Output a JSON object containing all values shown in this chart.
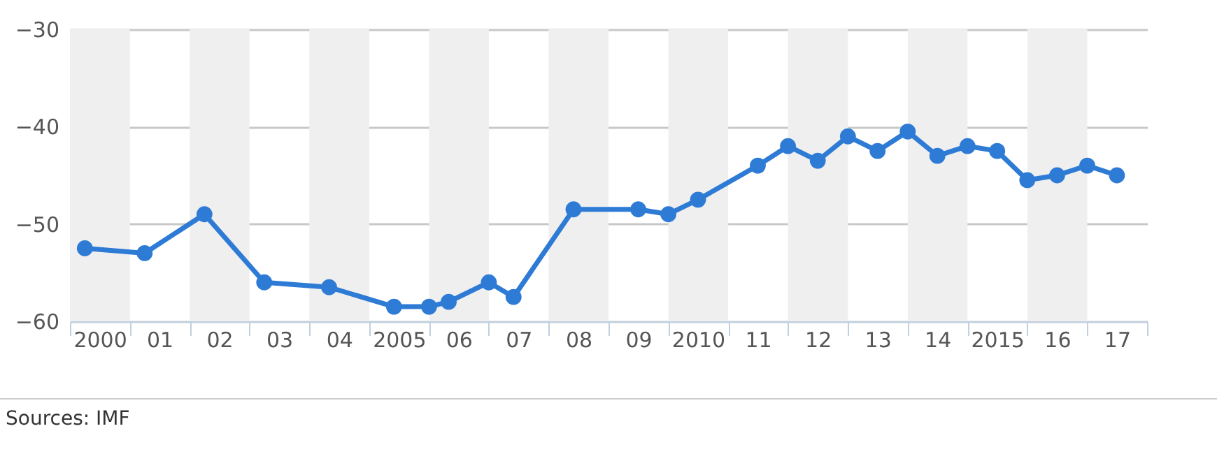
{
  "chart_data": {
    "type": "line",
    "x": [
      "2000-04",
      "2001-04",
      "2002-04",
      "2003-04",
      "2004-05",
      "2005-06",
      "2006-01",
      "2006-05",
      "2007-01",
      "2007-06",
      "2008-06",
      "2009-07",
      "2010-01",
      "2010-07",
      "2011-07",
      "2012-01",
      "2012-07",
      "2013-01",
      "2013-07",
      "2014-01",
      "2014-07",
      "2015-01",
      "2015-07",
      "2016-01",
      "2016-07",
      "2017-01",
      "2017-07"
    ],
    "series": [
      {
        "color": "#2e7bd6",
        "values": [
          -52.5,
          -53,
          -49,
          -56,
          -56.5,
          -58.5,
          -58.5,
          -58,
          -56,
          -57.5,
          -48.5,
          -48.5,
          -49,
          -47.5,
          -44,
          -42,
          -43.5,
          -41,
          -42.5,
          -40.5,
          -43,
          -42,
          -42.5,
          -45.5,
          -45,
          -44,
          -45
        ]
      }
    ],
    "xlim": [
      "2000-01-01",
      "2018-01-01"
    ],
    "xticks": [
      {
        "value": "2000-01-01",
        "label": null
      },
      {
        "value": "2000-07-01",
        "label": "2000"
      },
      {
        "value": "2001-01-01",
        "label": null
      },
      {
        "value": "2001-07-01",
        "label": "01"
      },
      {
        "value": "2002-01-01",
        "label": null
      },
      {
        "value": "2002-07-01",
        "label": "02"
      },
      {
        "value": "2003-01-01",
        "label": null
      },
      {
        "value": "2003-07-01",
        "label": "03"
      },
      {
        "value": "2004-01-01",
        "label": null
      },
      {
        "value": "2004-07-01",
        "label": "04"
      },
      {
        "value": "2005-01-01",
        "label": null
      },
      {
        "value": "2005-07-01",
        "label": "2005"
      },
      {
        "value": "2006-01-01",
        "label": null
      },
      {
        "value": "2006-07-01",
        "label": "06"
      },
      {
        "value": "2007-01-01",
        "label": null
      },
      {
        "value": "2007-07-01",
        "label": "07"
      },
      {
        "value": "2008-01-01",
        "label": null
      },
      {
        "value": "2008-07-01",
        "label": "08"
      },
      {
        "value": "2009-01-01",
        "label": null
      },
      {
        "value": "2009-07-01",
        "label": "09"
      },
      {
        "value": "2010-01-01",
        "label": null
      },
      {
        "value": "2010-07-01",
        "label": "2010"
      },
      {
        "value": "2011-01-01",
        "label": null
      },
      {
        "value": "2011-07-01",
        "label": "11"
      },
      {
        "value": "2012-01-01",
        "label": null
      },
      {
        "value": "2012-07-01",
        "label": "12"
      },
      {
        "value": "2013-01-01",
        "label": null
      },
      {
        "value": "2013-07-01",
        "label": "13"
      },
      {
        "value": "2014-01-01",
        "label": null
      },
      {
        "value": "2014-07-01",
        "label": "14"
      },
      {
        "value": "2015-01-01",
        "label": null
      },
      {
        "value": "2015-07-01",
        "label": "2015"
      },
      {
        "value": "2016-01-01",
        "label": null
      },
      {
        "value": "2016-07-01",
        "label": "16"
      },
      {
        "value": "2017-01-01",
        "label": null
      },
      {
        "value": "2017-07-01",
        "label": "17"
      },
      {
        "value": "2018-01-01",
        "label": null
      }
    ],
    "ylim": [
      -60,
      -30
    ],
    "yticks": [
      {
        "value": -60,
        "label": "−60"
      },
      {
        "value": -50,
        "label": "−50"
      },
      {
        "value": -40,
        "label": "−40"
      },
      {
        "value": -30,
        "label": "−30"
      }
    ],
    "grid": "y",
    "marker": "circle",
    "line_style": "solid",
    "bands": [
      {
        "axis": "x",
        "from": "2000-01-01",
        "to": "2001-01-01",
        "color": "#efefef"
      },
      {
        "axis": "x",
        "from": "2002-01-01",
        "to": "2003-01-01",
        "color": "#efefef"
      },
      {
        "axis": "x",
        "from": "2004-01-01",
        "to": "2005-01-01",
        "color": "#efefef"
      },
      {
        "axis": "x",
        "from": "2006-01-01",
        "to": "2007-01-01",
        "color": "#efefef"
      },
      {
        "axis": "x",
        "from": "2008-01-01",
        "to": "2009-01-01",
        "color": "#efefef"
      },
      {
        "axis": "x",
        "from": "2010-01-01",
        "to": "2011-01-01",
        "color": "#efefef"
      },
      {
        "axis": "x",
        "from": "2012-01-01",
        "to": "2013-01-01",
        "color": "#efefef"
      },
      {
        "axis": "x",
        "from": "2014-01-01",
        "to": "2015-01-01",
        "color": "#efefef"
      },
      {
        "axis": "x",
        "from": "2016-01-01",
        "to": "2017-01-01",
        "color": "#efefef"
      }
    ],
    "annotations": [
      "Sources: IMF"
    ]
  }
}
